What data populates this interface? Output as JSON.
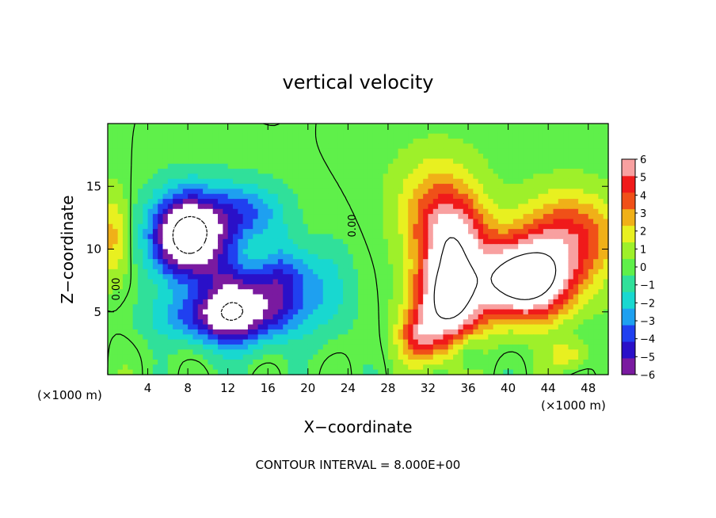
{
  "chart_data": {
    "type": "heatmap",
    "title": "vertical velocity",
    "xlabel": "X−coordinate",
    "ylabel": "Z−coordinate",
    "x_unit_left": "(×1000 m)",
    "x_unit_right": "(×1000 m)",
    "footer": "CONTOUR INTERVAL = 8.000E+00",
    "contour_label": "0.00",
    "xlim": [
      0,
      50
    ],
    "ylim": [
      0,
      20
    ],
    "x_ticks": [
      4,
      8,
      12,
      16,
      20,
      24,
      28,
      32,
      36,
      40,
      44,
      48
    ],
    "y_ticks": [
      5,
      10,
      15
    ],
    "colorbar": {
      "min": -6,
      "max": 6,
      "ticks": [
        6,
        5,
        4,
        3,
        2,
        1,
        0,
        -1,
        -2,
        -3,
        -4,
        -5,
        -6
      ],
      "tick_labels": [
        "6",
        "5",
        "4",
        "3",
        "2",
        "1",
        "0",
        "−1",
        "−2",
        "−3",
        "−4",
        "−5",
        "−6"
      ],
      "colors": [
        "#7a1aa0",
        "#2a10c8",
        "#2040f0",
        "#1ea0f0",
        "#18d8d0",
        "#30e09a",
        "#5ff04a",
        "#9ef02a",
        "#e8f020",
        "#f0b018",
        "#f05018",
        "#f01a1a",
        "#f8a0a0"
      ],
      "saturation_color": "#ffffff"
    },
    "features": [
      {
        "x": 14.5,
        "z": 9.5,
        "w": 7,
        "sx": 5.0,
        "sz": 3.5
      },
      {
        "x": 8.0,
        "z": 11.0,
        "w": -9.8,
        "sx": 3.6,
        "sz": 3.4
      },
      {
        "x": 12.5,
        "z": 7.5,
        "w": -7.4,
        "sx": 3.2,
        "sz": 4.2
      },
      {
        "x": 17.0,
        "z": 8.0,
        "w": -7.8,
        "sx": 3.2,
        "sz": 3.6
      },
      {
        "x": 14.0,
        "z": 12.5,
        "w": -4.5,
        "sx": 4.0,
        "sz": 2.6
      },
      {
        "x": 11.0,
        "z": 4.5,
        "w": -4.2,
        "sx": 6.0,
        "sz": 2.0
      },
      {
        "x": 22.0,
        "z": 7.0,
        "w": -2.0,
        "sx": 2.5,
        "sz": 4.0
      },
      {
        "x": 34.0,
        "z": 6.0,
        "w": 9.0,
        "sx": 3.2,
        "sz": 3.8
      },
      {
        "x": 41.5,
        "z": 7.5,
        "w": 10.0,
        "sx": 4.6,
        "sz": 3.0
      },
      {
        "x": 34.5,
        "z": 11.0,
        "w": 4.8,
        "sx": 3.5,
        "sz": 3.0
      },
      {
        "x": 33.0,
        "z": 14.0,
        "w": 2.8,
        "sx": 4.2,
        "sz": 3.8
      },
      {
        "x": 46.0,
        "z": 11.0,
        "w": 4.5,
        "sx": 5.0,
        "sz": 3.5
      },
      {
        "x": 31.0,
        "z": 3.0,
        "w": 3.5,
        "sx": 2.0,
        "sz": 2.0
      },
      {
        "x": 0.5,
        "z": 11.0,
        "w": 2.6,
        "sx": 1.6,
        "sz": 3.5
      },
      {
        "x": 36.0,
        "z": 2.0,
        "w": -2.0,
        "sx": 1.5,
        "sz": 1.5
      },
      {
        "x": 46.0,
        "z": 1.5,
        "w": 2.0,
        "sx": 2.0,
        "sz": 1.2
      }
    ]
  }
}
